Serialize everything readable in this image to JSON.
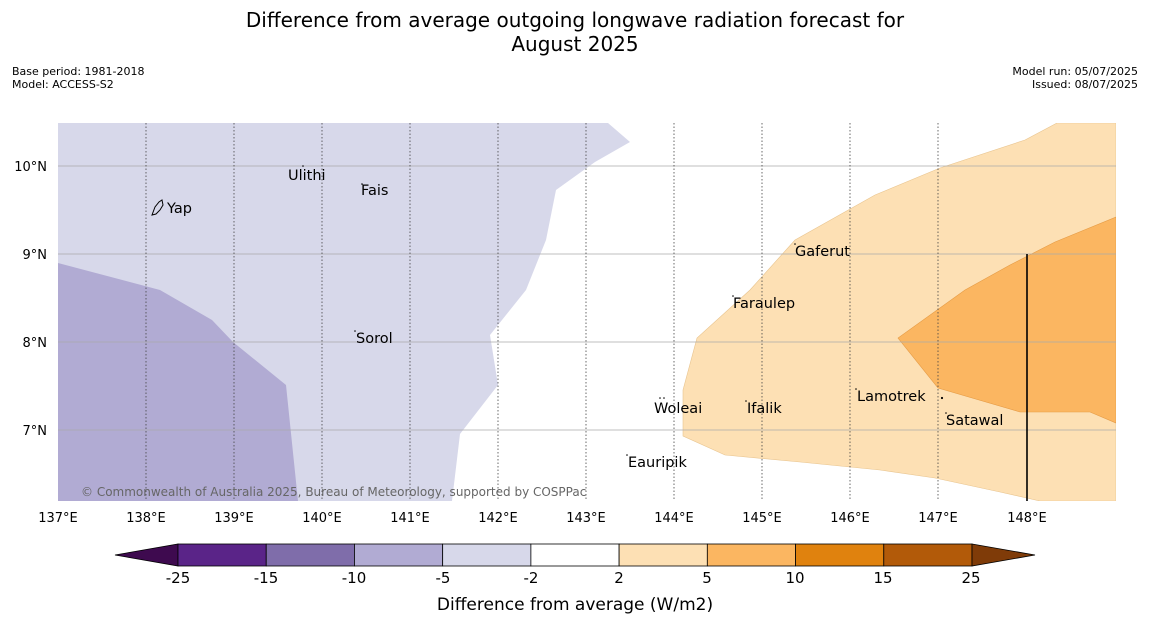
{
  "header": {
    "title_line1": "Difference from average outgoing longwave radiation forecast for",
    "title_line2": "August 2025",
    "base_period": "Base period: 1981-2018",
    "model": "Model: ACCESS-S2",
    "model_run": "Model run: 05/07/2025",
    "issued": "Issued: 08/07/2025"
  },
  "map": {
    "longitude_labels": [
      "137°E",
      "138°E",
      "139°E",
      "140°E",
      "141°E",
      "142°E",
      "143°E",
      "144°E",
      "145°E",
      "146°E",
      "147°E",
      "148°E"
    ],
    "latitude_labels": [
      "10°N",
      "9°N",
      "8°N",
      "7°N"
    ],
    "places": [
      "Ulithi",
      "Fais",
      "Yap",
      "Gaferut",
      "Faraulep",
      "Sorol",
      "Lamotrek",
      "Woleai",
      "Ifalik",
      "Satawal",
      "Eauripik"
    ],
    "copyright": "© Commonwealth of Australia 2025, Bureau of Meteorology, supported by COSPPac"
  },
  "colorbar": {
    "ticks": [
      "-25",
      "-15",
      "-10",
      "-5",
      "-2",
      "2",
      "5",
      "10",
      "15",
      "25"
    ],
    "colors": [
      "#5a2488",
      "#7f6daa",
      "#b1abd3",
      "#d7d8ea",
      "#ffffff",
      "#fde0b4",
      "#fbb661",
      "#e0820e",
      "#b25a09"
    ],
    "under_color": "#3e0a4f",
    "over_color": "#7f3b08",
    "title": "Difference from average (W/m2)"
  }
}
